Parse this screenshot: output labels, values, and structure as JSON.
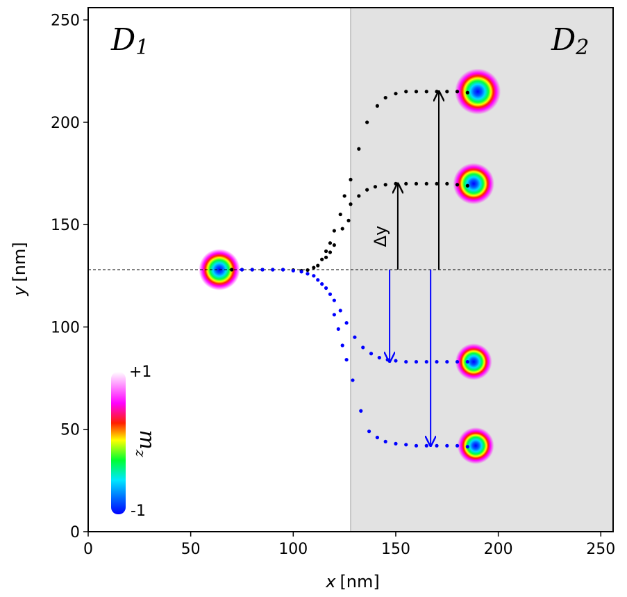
{
  "chart_data": {
    "type": "scatter",
    "title": "",
    "xlabel": {
      "var": "x",
      "unit": "[nm]"
    },
    "ylabel": {
      "var": "y",
      "unit": "[nm]"
    },
    "xlim": [
      0,
      256
    ],
    "ylim": [
      0,
      256
    ],
    "xticks": [
      0,
      50,
      100,
      150,
      200,
      250
    ],
    "yticks": [
      0,
      50,
      100,
      150,
      200,
      250
    ],
    "regions": [
      {
        "name": "D",
        "sub": "1",
        "x_range": [
          0,
          128
        ],
        "color": "#ffffff"
      },
      {
        "name": "D",
        "sub": "2",
        "x_range": [
          128,
          256
        ],
        "color": "#e2e2e2"
      }
    ],
    "boundary_x": 128,
    "reference_line_y": 128,
    "initial_skyrmion": {
      "x": 64,
      "y": 128,
      "radius_nm": 9
    },
    "series": [
      {
        "name": "trajectory-upper-1",
        "color": "#000000",
        "points": [
          [
            70,
            128
          ],
          [
            75,
            128
          ],
          [
            80,
            128
          ],
          [
            85,
            128
          ],
          [
            90,
            128
          ],
          [
            95,
            128
          ],
          [
            100,
            127.8
          ],
          [
            104,
            127.5
          ],
          [
            107,
            127.8
          ],
          [
            110,
            129
          ],
          [
            112,
            130
          ],
          [
            114,
            133
          ],
          [
            116,
            134
          ],
          [
            118,
            136.5
          ],
          [
            120,
            140
          ],
          [
            124,
            148
          ],
          [
            127,
            152
          ],
          [
            128,
            160
          ],
          [
            132,
            164
          ],
          [
            136,
            167
          ],
          [
            140,
            168.5
          ],
          [
            145,
            169.5
          ],
          [
            150,
            170
          ],
          [
            155,
            170
          ],
          [
            160,
            170
          ],
          [
            165,
            170
          ],
          [
            170,
            170
          ],
          [
            175,
            170
          ],
          [
            180,
            169.5
          ],
          [
            185,
            169
          ]
        ],
        "end_skyrmion": {
          "x": 188,
          "y": 170,
          "radius_nm": 9
        }
      },
      {
        "name": "trajectory-upper-2",
        "color": "#000000",
        "points": [
          [
            116,
            137
          ],
          [
            118,
            141
          ],
          [
            120,
            147
          ],
          [
            123,
            155
          ],
          [
            125,
            164
          ],
          [
            128,
            172
          ],
          [
            132,
            187
          ],
          [
            136,
            200
          ],
          [
            141,
            208
          ],
          [
            145,
            212
          ],
          [
            150,
            214
          ],
          [
            155,
            215
          ],
          [
            160,
            215
          ],
          [
            165,
            215
          ],
          [
            170,
            215
          ],
          [
            175,
            215
          ],
          [
            180,
            215
          ],
          [
            185,
            214.5
          ]
        ],
        "end_skyrmion": {
          "x": 190,
          "y": 215,
          "radius_nm": 10
        }
      },
      {
        "name": "trajectory-lower-1",
        "color": "#0000ff",
        "points": [
          [
            75,
            128
          ],
          [
            80,
            128
          ],
          [
            85,
            128
          ],
          [
            90,
            128
          ],
          [
            95,
            128
          ],
          [
            100,
            127.5
          ],
          [
            104,
            127
          ],
          [
            107,
            126
          ],
          [
            110,
            125
          ],
          [
            112,
            123
          ],
          [
            114,
            121
          ],
          [
            116,
            119
          ],
          [
            118,
            116
          ],
          [
            120,
            113
          ],
          [
            123,
            108
          ],
          [
            126,
            102
          ],
          [
            130,
            95
          ],
          [
            134,
            90
          ],
          [
            138,
            87
          ],
          [
            142,
            85
          ],
          [
            146,
            84
          ],
          [
            150,
            83.5
          ],
          [
            155,
            83
          ],
          [
            160,
            83
          ],
          [
            165,
            83
          ],
          [
            170,
            83
          ],
          [
            175,
            83
          ],
          [
            180,
            83
          ],
          [
            185,
            83
          ]
        ],
        "end_skyrmion": {
          "x": 188,
          "y": 83,
          "radius_nm": 8
        }
      },
      {
        "name": "trajectory-lower-2",
        "color": "#0000ff",
        "points": [
          [
            120,
            106
          ],
          [
            122,
            99
          ],
          [
            124,
            91
          ],
          [
            126,
            84
          ],
          [
            129,
            74
          ],
          [
            133,
            59
          ],
          [
            137,
            49
          ],
          [
            141,
            46
          ],
          [
            145,
            44
          ],
          [
            150,
            43
          ],
          [
            155,
            42.5
          ],
          [
            160,
            42
          ],
          [
            165,
            42
          ],
          [
            170,
            42
          ],
          [
            175,
            42
          ],
          [
            180,
            42
          ],
          [
            185,
            41.5
          ]
        ],
        "end_skyrmion": {
          "x": 189,
          "y": 42,
          "radius_nm": 8
        }
      }
    ],
    "displacement_arrows": [
      {
        "color": "#000000",
        "x": 151,
        "y_from": 128,
        "y_to": 170
      },
      {
        "color": "#000000",
        "x": 171,
        "y_from": 128,
        "y_to": 215
      },
      {
        "color": "#0000ff",
        "x": 147,
        "y_from": 128,
        "y_to": 83
      },
      {
        "color": "#0000ff",
        "x": 167,
        "y_from": 128,
        "y_to": 42
      }
    ],
    "annotations": {
      "region_left": "D",
      "region_left_sub": "1",
      "region_right": "D",
      "region_right_sub": "2",
      "delta_y": "Δy"
    },
    "colorbar": {
      "title": "mz",
      "title_var": "m",
      "title_sub": "z",
      "max_label": "+1",
      "min_label": "-1",
      "colormap": "hsv"
    }
  }
}
